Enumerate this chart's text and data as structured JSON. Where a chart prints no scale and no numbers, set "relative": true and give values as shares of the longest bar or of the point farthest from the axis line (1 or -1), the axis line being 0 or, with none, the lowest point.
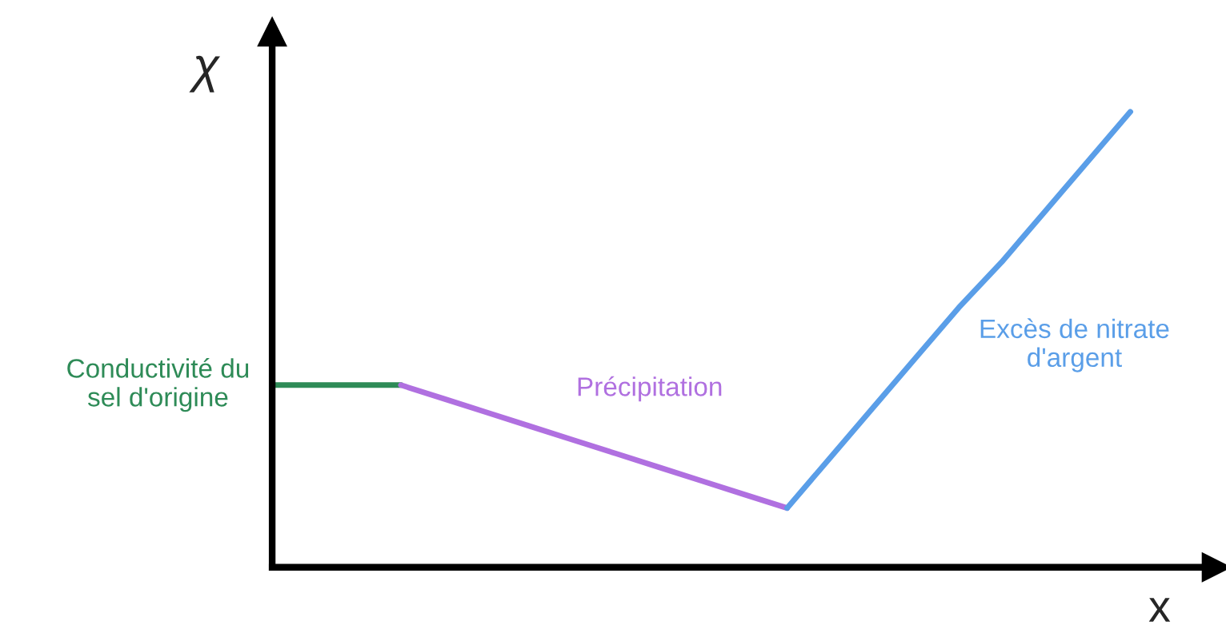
{
  "chart_data": {
    "type": "line",
    "relative": true,
    "xlabel": "x",
    "ylabel": "χ",
    "marker": "none",
    "line_style": "solid",
    "categories": [
      null,
      null,
      null,
      null,
      null,
      null,
      null,
      null,
      null,
      null,
      null,
      null,
      null,
      null,
      null,
      null,
      null,
      null,
      null,
      null,
      null
    ],
    "series": [
      {
        "name": "Conductivité du\nsel d'origine",
        "color": "#2e8b57",
        "values": [
          0.4,
          0.4,
          0.4,
          0.4,
          null,
          null,
          null,
          null,
          null,
          null,
          null,
          null,
          null,
          null,
          null,
          null,
          null,
          null,
          null,
          null,
          null
        ]
      },
      {
        "name": "Précipitation",
        "color": "#b070e0",
        "values": [
          null,
          null,
          null,
          0.4,
          0.37,
          0.34,
          0.31,
          0.28,
          0.25,
          0.22,
          0.19,
          0.16,
          0.13,
          null,
          null,
          null,
          null,
          null,
          null,
          null,
          null
        ]
      },
      {
        "name": "Excès de nitrate\nd'argent",
        "color": "#5a9ee8",
        "values": [
          null,
          null,
          null,
          null,
          null,
          null,
          null,
          null,
          null,
          null,
          null,
          null,
          0.13,
          0.24,
          0.35,
          0.46,
          0.57,
          0.67,
          0.78,
          0.89,
          1.0
        ]
      }
    ]
  }
}
